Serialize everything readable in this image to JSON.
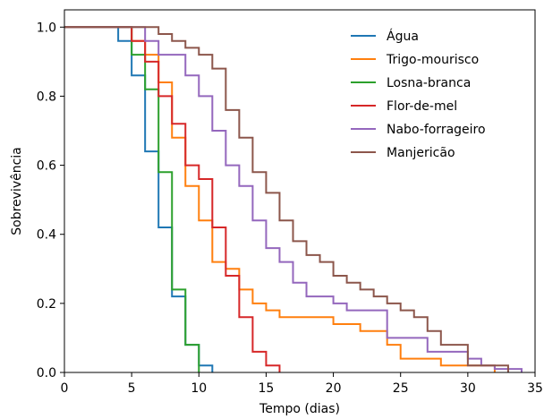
{
  "chart_data": {
    "type": "line",
    "step": true,
    "title": "",
    "xlabel": "Tempo (dias)",
    "ylabel": "Sobrevivência",
    "xlim": [
      0,
      35
    ],
    "ylim": [
      0,
      1.05
    ],
    "xticks": [
      0,
      5,
      10,
      15,
      20,
      25,
      30,
      35
    ],
    "yticks": [
      0.0,
      0.2,
      0.4,
      0.6,
      0.8,
      1.0
    ],
    "xtick_labels": [
      "0",
      "5",
      "10",
      "15",
      "20",
      "25",
      "30",
      "35"
    ],
    "ytick_labels": [
      "0.0",
      "0.2",
      "0.4",
      "0.6",
      "0.8",
      "1.0"
    ],
    "grid": false,
    "legend_position": "top-right",
    "series": [
      {
        "name": "Água",
        "color": "#1f77b4",
        "x": [
          0,
          4,
          5,
          6,
          7,
          8,
          9,
          10,
          11
        ],
        "y": [
          1.0,
          0.96,
          0.86,
          0.64,
          0.42,
          0.22,
          0.08,
          0.02,
          0.0
        ]
      },
      {
        "name": "Trigo-mourisco",
        "color": "#ff7f0e",
        "x": [
          0,
          5,
          6,
          7,
          8,
          9,
          10,
          11,
          12,
          13,
          14,
          15,
          16,
          20,
          22,
          24,
          25,
          28,
          32
        ],
        "y": [
          1.0,
          0.96,
          0.92,
          0.84,
          0.68,
          0.54,
          0.44,
          0.32,
          0.3,
          0.24,
          0.2,
          0.18,
          0.16,
          0.14,
          0.12,
          0.08,
          0.04,
          0.02,
          0.0
        ]
      },
      {
        "name": "Losna-branca",
        "color": "#2ca02c",
        "x": [
          0,
          5,
          6,
          7,
          8,
          9,
          10
        ],
        "y": [
          1.0,
          0.92,
          0.82,
          0.58,
          0.24,
          0.08,
          0.0
        ]
      },
      {
        "name": "Flor-de-mel",
        "color": "#d62728",
        "x": [
          0,
          5,
          6,
          7,
          8,
          9,
          10,
          11,
          12,
          13,
          14,
          15,
          16
        ],
        "y": [
          1.0,
          0.96,
          0.9,
          0.8,
          0.72,
          0.6,
          0.56,
          0.42,
          0.28,
          0.16,
          0.06,
          0.02,
          0.0
        ]
      },
      {
        "name": "Nabo-forrageiro",
        "color": "#9467bd",
        "x": [
          0,
          6,
          7,
          9,
          10,
          11,
          12,
          13,
          14,
          15,
          16,
          17,
          18,
          20,
          21,
          24,
          27,
          30,
          31,
          32,
          34
        ],
        "y": [
          1.0,
          0.96,
          0.92,
          0.86,
          0.8,
          0.7,
          0.6,
          0.54,
          0.44,
          0.36,
          0.32,
          0.26,
          0.22,
          0.2,
          0.18,
          0.1,
          0.06,
          0.04,
          0.02,
          0.01,
          0.0
        ]
      },
      {
        "name": "Manjericão",
        "color": "#8c564b",
        "x": [
          0,
          7,
          8,
          9,
          10,
          11,
          12,
          13,
          14,
          15,
          16,
          17,
          18,
          19,
          20,
          21,
          22,
          23,
          24,
          25,
          26,
          27,
          28,
          30,
          33
        ],
        "y": [
          1.0,
          0.98,
          0.96,
          0.94,
          0.92,
          0.88,
          0.76,
          0.68,
          0.58,
          0.52,
          0.44,
          0.38,
          0.34,
          0.32,
          0.28,
          0.26,
          0.24,
          0.22,
          0.2,
          0.18,
          0.16,
          0.12,
          0.08,
          0.02,
          0.0
        ]
      }
    ]
  }
}
